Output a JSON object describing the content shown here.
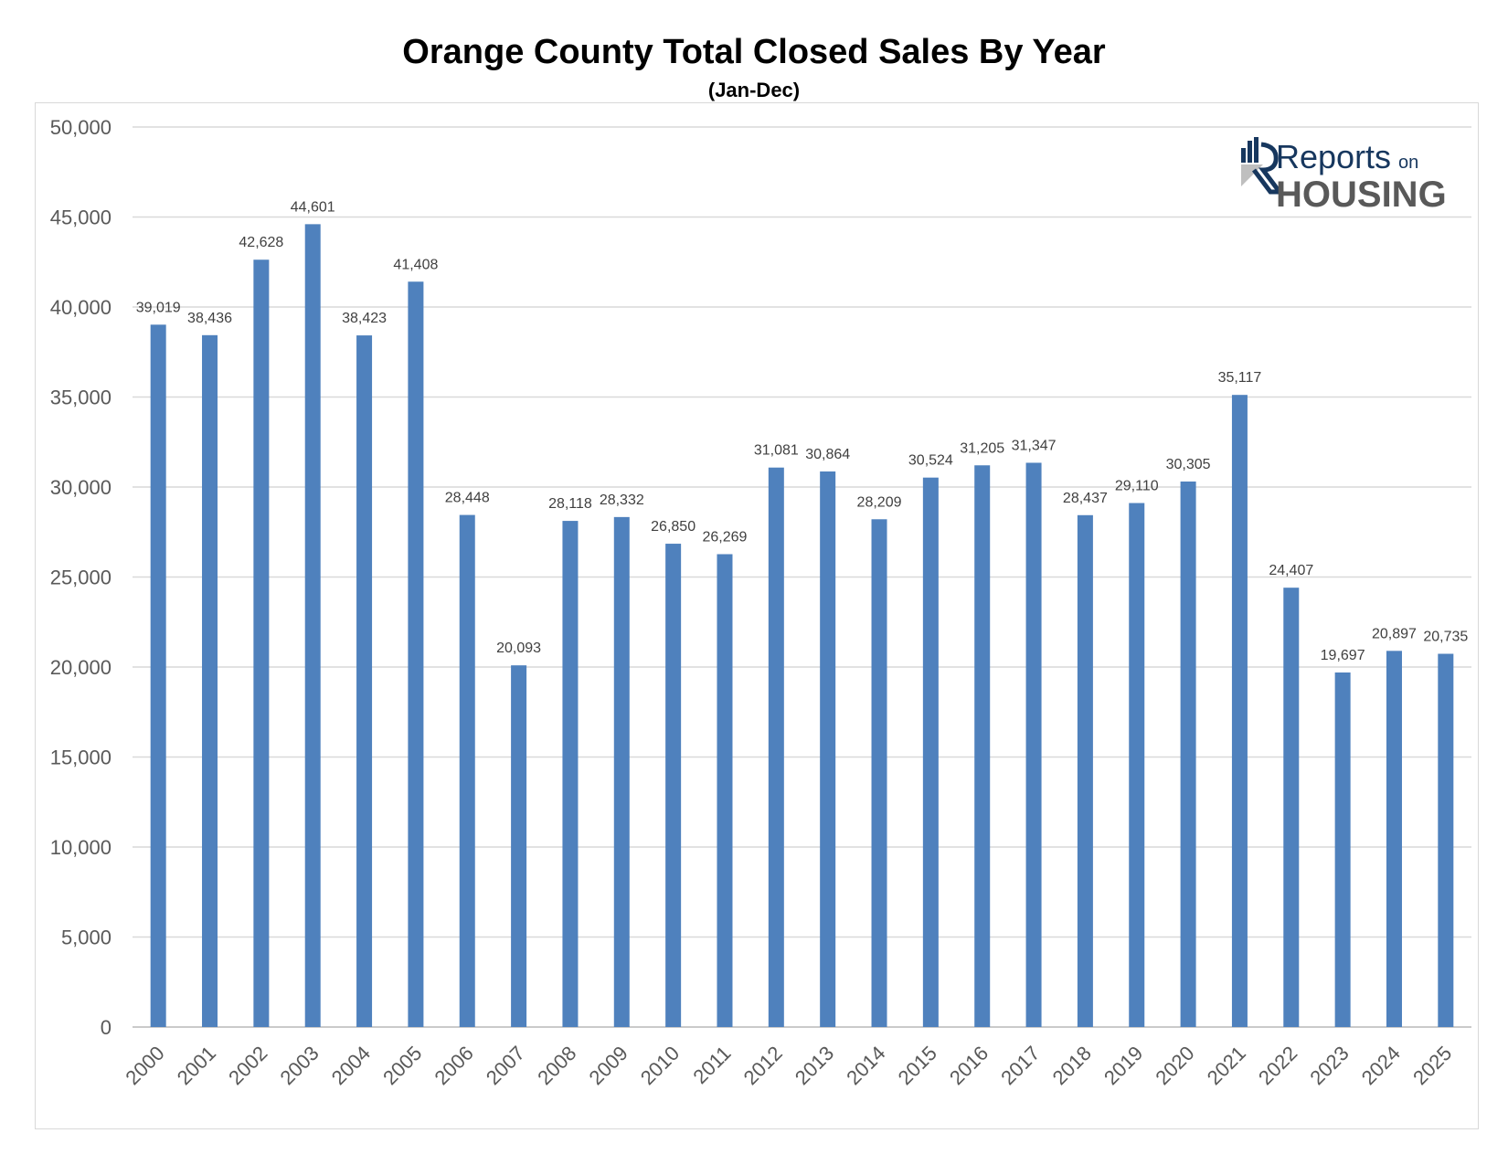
{
  "chart_data": {
    "type": "bar",
    "title": "Orange County Total Closed Sales By Year",
    "subtitle": "(Jan-Dec)",
    "categories": [
      "2000",
      "2001",
      "2002",
      "2003",
      "2004",
      "2005",
      "2006",
      "2007",
      "2008",
      "2009",
      "2010",
      "2011",
      "2012",
      "2013",
      "2014",
      "2015",
      "2016",
      "2017",
      "2018",
      "2019",
      "2020",
      "2021",
      "2022",
      "2023",
      "2024",
      "2025"
    ],
    "values": [
      39019,
      38436,
      42628,
      44601,
      38423,
      41408,
      28448,
      20093,
      28118,
      28332,
      26850,
      26269,
      31081,
      30864,
      28209,
      30524,
      31205,
      31347,
      28437,
      29110,
      30305,
      35117,
      24407,
      19697,
      20897,
      20735
    ],
    "value_labels": [
      "39,019",
      "38,436",
      "42,628",
      "44,601",
      "38,423",
      "41,408",
      "28,448",
      "20,093",
      "28,118",
      "28,332",
      "26,850",
      "26,269",
      "31,081",
      "30,864",
      "28,209",
      "30,524",
      "31,205",
      "31,347",
      "28,437",
      "29,110",
      "30,305",
      "35,117",
      "24,407",
      "19,697",
      "20,897",
      "20,735"
    ],
    "y_ticks": [
      0,
      5000,
      10000,
      15000,
      20000,
      25000,
      30000,
      35000,
      40000,
      45000,
      50000
    ],
    "y_tick_labels": [
      "0",
      "5,000",
      "10,000",
      "15,000",
      "20,000",
      "25,000",
      "30,000",
      "35,000",
      "40,000",
      "45,000",
      "50,000"
    ],
    "ylim": [
      0,
      50000
    ],
    "xlabel": "",
    "ylabel": "",
    "grid": true,
    "legend": "none",
    "bar_color": "#4f81bd",
    "grid_color": "#d9d9d9"
  },
  "logo": {
    "line1": "Reports",
    "line1_small": "on",
    "line2": "HOUSING",
    "navy": "#17375e",
    "gray": "#595959"
  }
}
